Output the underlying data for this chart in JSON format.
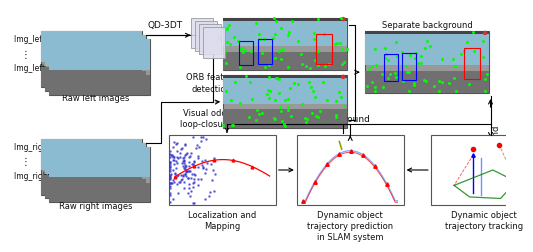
{
  "bg_color": "#ffffff",
  "img_left_labels": [
    "Img_left n",
    "Img_left 1"
  ],
  "img_right_labels": [
    "Img_right n",
    "Img_right 1"
  ],
  "raw_left_text": "Raw left images",
  "raw_right_text": "Raw right images",
  "qd3dt_text": "QD-3DT",
  "orb_text": "ORB feature\ndetection",
  "vis_odo_text": "Visual odometry and\nloop-closure detection",
  "background_text": "Background",
  "foreground_text": "Foreground",
  "sep_text": "Separate background\nand foreground",
  "loc_text": "Localization and\nMapping",
  "traj_pred_text": "Dynamic object\ntrajectory prediction\nin SLAM system",
  "traj_track_text": "Dynamic object\ntrajectory tracking",
  "arrow_color": "#000000",
  "box_edge_color": "#555555",
  "img_sky_color": "#87CEEB",
  "img_ground_color": "#888888",
  "img_titlebar_color": "#222222"
}
